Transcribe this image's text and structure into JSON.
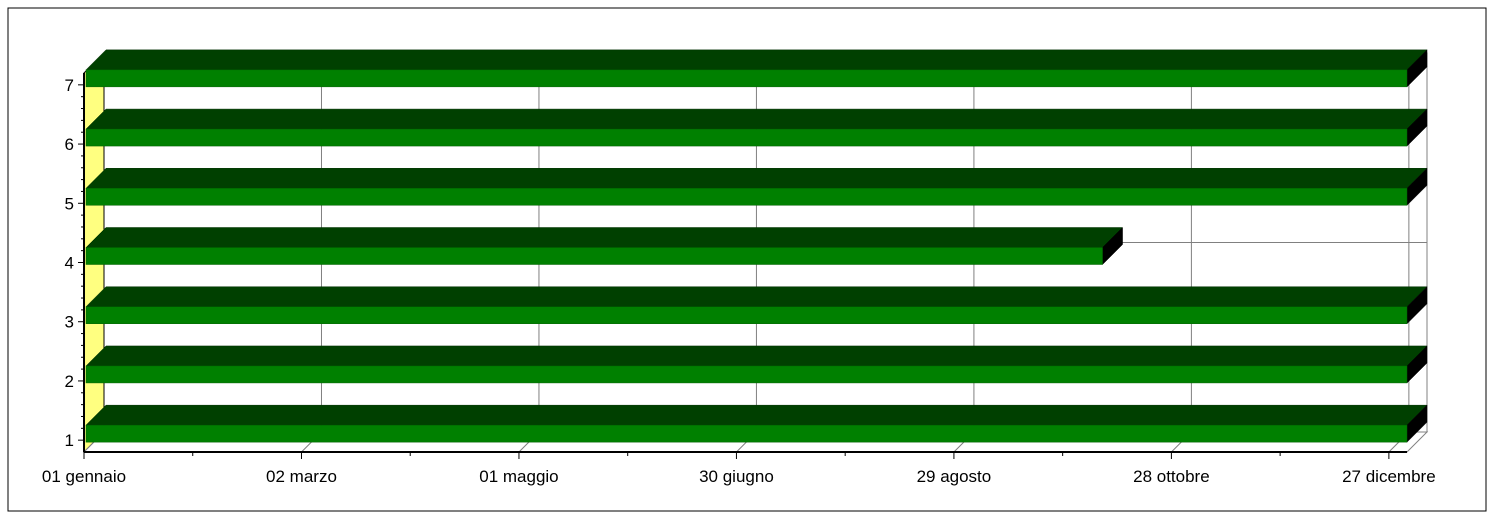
{
  "chart_data": {
    "type": "bar",
    "orientation": "horizontal",
    "style": "3d",
    "categories": [
      1,
      2,
      3,
      4,
      5,
      6,
      7
    ],
    "series": [
      {
        "start": [
          "01 gennaio",
          "01 gennaio",
          "01 gennaio",
          "01 gennaio",
          "01 gennaio",
          "01 gennaio",
          "01 gennaio"
        ],
        "end": [
          "31 dicembre",
          "31 dicembre",
          "31 dicembre",
          "08 ottobre",
          "31 dicembre",
          "31 dicembre",
          "31 dicembre"
        ]
      }
    ],
    "x_tick_labels": [
      "01 gennaio",
      "02 marzo",
      "01 maggio",
      "30 giugno",
      "29 agosto",
      "28 ottobre",
      "27 dicembre"
    ],
    "y_tick_labels": [
      "1",
      "2",
      "3",
      "4",
      "5",
      "6",
      "7"
    ],
    "grid": true,
    "colors": {
      "bar_front": "#008000",
      "bar_top": "#004000",
      "bar_end": "#000000",
      "wall": "#ffff80",
      "grid": "#808080"
    }
  }
}
